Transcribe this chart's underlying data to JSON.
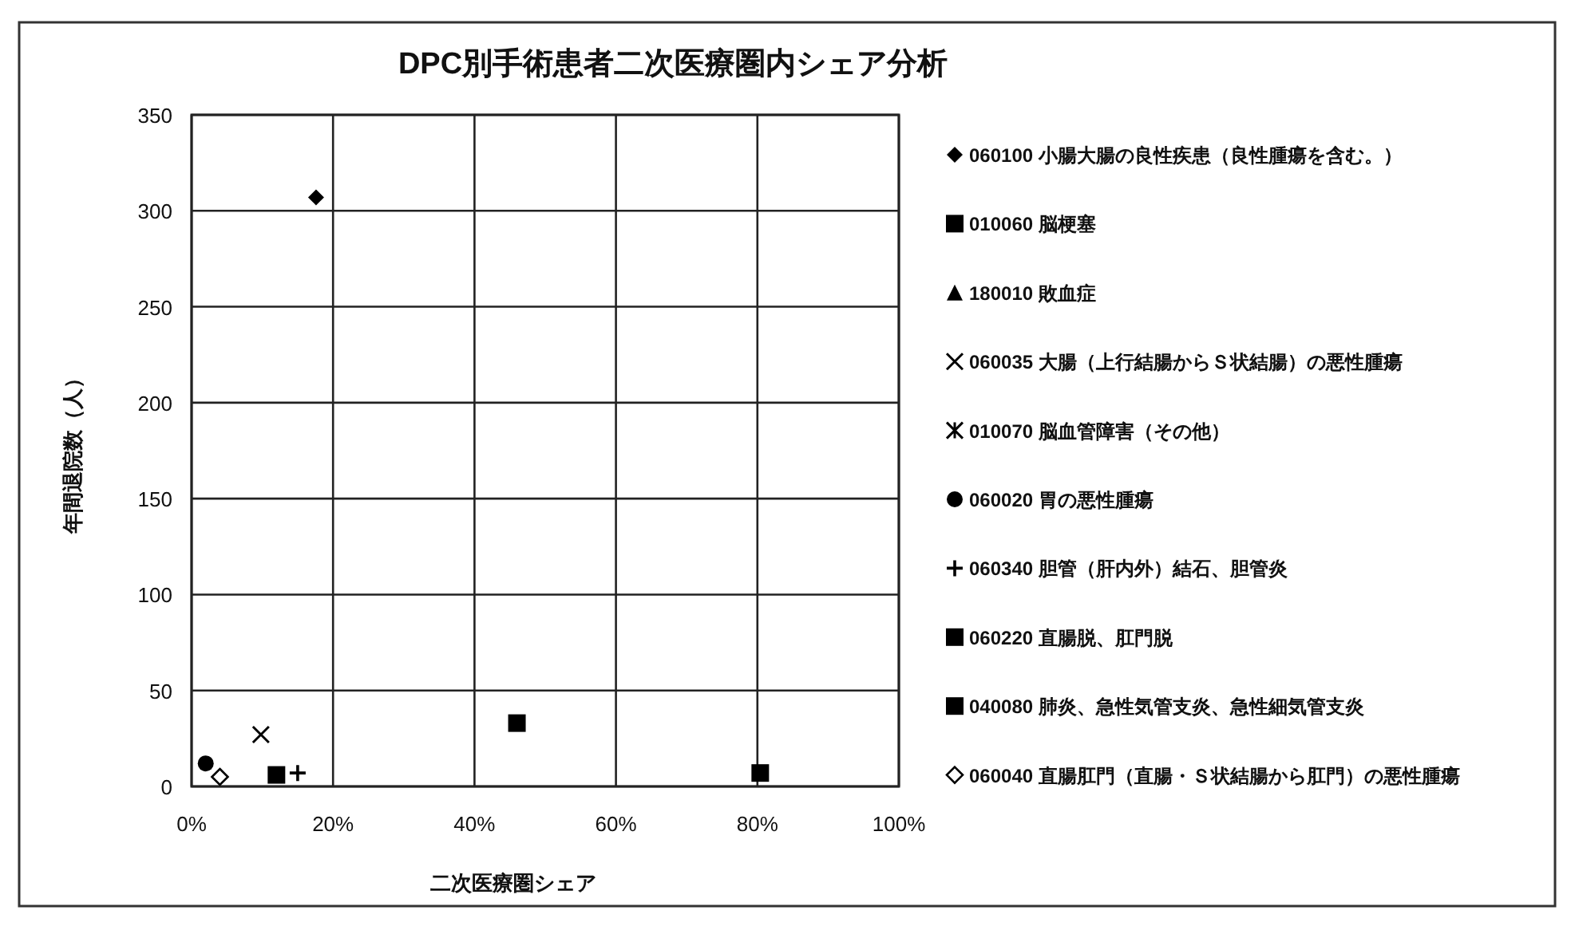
{
  "chart_data": {
    "type": "scatter",
    "title": "DPC別手術患者二次医療圏内シェア分析",
    "xlabel": "二次医療圏シェア",
    "ylabel": "年間退院数（人）",
    "xlim": [
      0,
      100
    ],
    "xticks": [
      {
        "value": 0,
        "label": "0%"
      },
      {
        "value": 20,
        "label": "20%"
      },
      {
        "value": 40,
        "label": "40%"
      },
      {
        "value": 60,
        "label": "60%"
      },
      {
        "value": 80,
        "label": "80%"
      },
      {
        "value": 100,
        "label": "100%"
      }
    ],
    "ylim": [
      0,
      350
    ],
    "yticks": [
      0,
      50,
      100,
      150,
      200,
      250,
      300,
      350
    ],
    "grid": true,
    "legend": "right",
    "series": [
      {
        "name": "060100 小腸大腸の良性疾患（良性腫瘍を含む。）",
        "color": "#000000",
        "marker": "diamond",
        "x": [
          17.6
        ],
        "values": [
          307
        ]
      },
      {
        "name": "010060 脳梗塞",
        "color": "#000000",
        "marker": "square",
        "x": [
          46
        ],
        "values": [
          33
        ]
      },
      {
        "name": "180010 敗血症",
        "color": "#000000",
        "marker": "triangle",
        "x": [
          null
        ],
        "values": [
          null
        ]
      },
      {
        "name": "060035 大腸（上行結腸からＳ状結腸）の悪性腫瘍",
        "color": "#000000",
        "marker": "cross",
        "x": [
          9.8
        ],
        "values": [
          27
        ]
      },
      {
        "name": "010070 脳血管障害（その他）",
        "color": "#000000",
        "marker": "star",
        "x": [
          null
        ],
        "values": [
          null
        ]
      },
      {
        "name": "060020 胃の悪性腫瘍",
        "color": "#000000",
        "marker": "circle",
        "x": [
          2
        ],
        "values": [
          12
        ]
      },
      {
        "name": "060340 胆管（肝内外）結石、胆管炎",
        "color": "#000000",
        "marker": "plus",
        "x": [
          15
        ],
        "values": [
          7
        ]
      },
      {
        "name": "060220 直腸脱、肛門脱",
        "color": "#000000",
        "marker": "square",
        "x": [
          80.4
        ],
        "values": [
          7
        ]
      },
      {
        "name": "040080 肺炎、急性気管支炎、急性細気管支炎",
        "color": "#000000",
        "marker": "square",
        "x": [
          12
        ],
        "values": [
          6
        ]
      },
      {
        "name": "060040 直腸肛門（直腸・Ｓ状結腸から肛門）の悪性腫瘍",
        "color": "#000000",
        "marker": "diamond",
        "x": [
          4
        ],
        "values": [
          5
        ]
      }
    ]
  }
}
